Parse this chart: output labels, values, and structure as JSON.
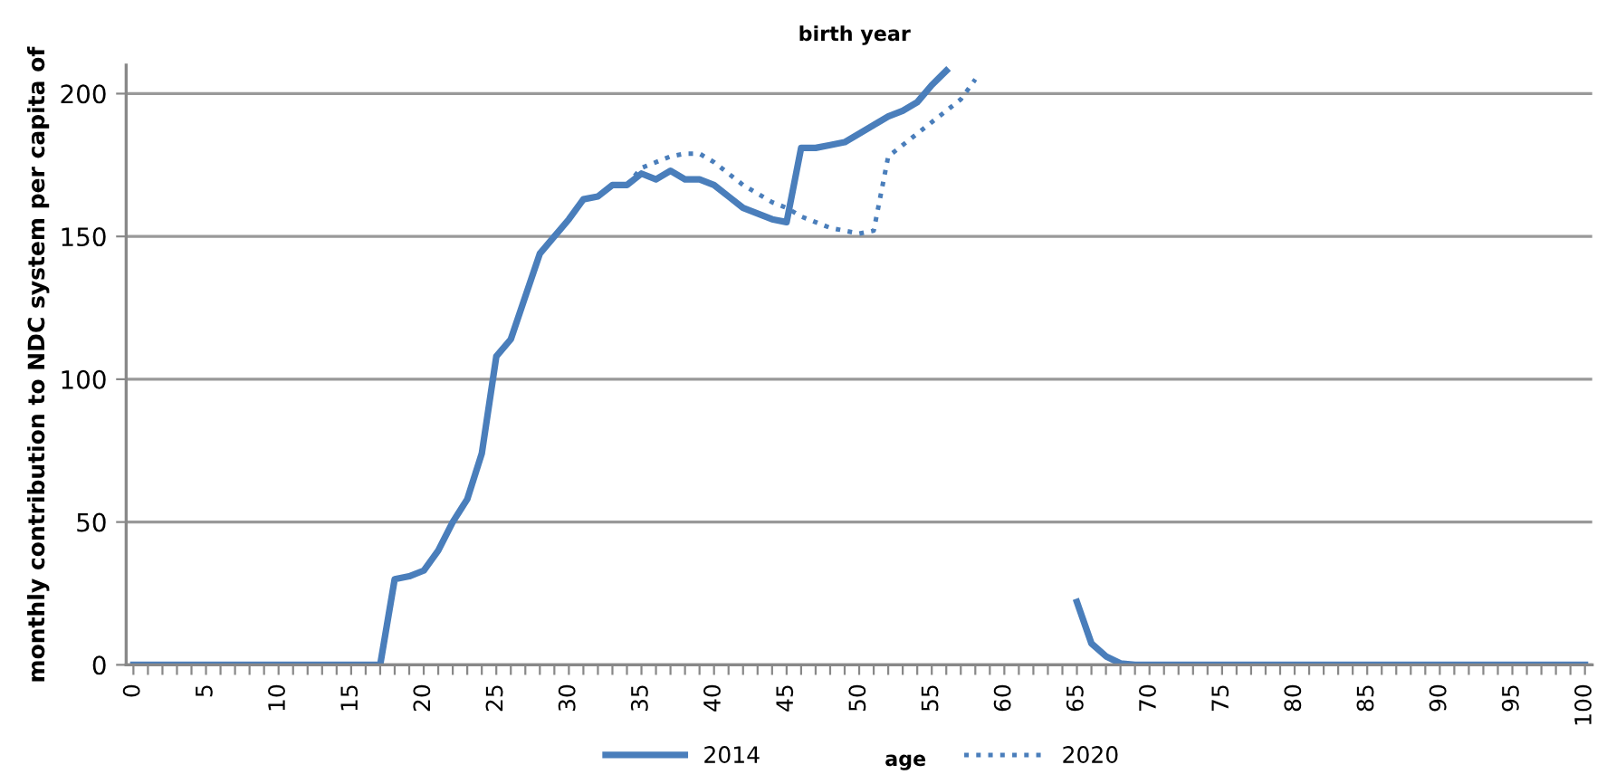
{
  "chart_data": {
    "type": "line",
    "title": "birth year",
    "xlabel": "age",
    "ylabel": "monthly contribution to NDC system per capita of",
    "xlim": [
      -0.5,
      100.5
    ],
    "ylim": [
      0,
      210
    ],
    "yticks": [
      0,
      50,
      100,
      150,
      200
    ],
    "xticks": [
      0,
      {
        "value": 1,
        "label": null
      },
      {
        "value": 2,
        "label": null
      },
      {
        "value": 3,
        "label": null
      },
      {
        "value": 4,
        "label": null
      },
      5,
      {
        "value": 6,
        "label": null
      },
      {
        "value": 7,
        "label": null
      },
      {
        "value": 8,
        "label": null
      },
      {
        "value": 9,
        "label": null
      },
      10,
      {
        "value": 11,
        "label": null
      },
      {
        "value": 12,
        "label": null
      },
      {
        "value": 13,
        "label": null
      },
      {
        "value": 14,
        "label": null
      },
      15,
      {
        "value": 16,
        "label": null
      },
      {
        "value": 17,
        "label": null
      },
      {
        "value": 18,
        "label": null
      },
      {
        "value": 19,
        "label": null
      },
      20,
      {
        "value": 21,
        "label": null
      },
      {
        "value": 22,
        "label": null
      },
      {
        "value": 23,
        "label": null
      },
      {
        "value": 24,
        "label": null
      },
      25,
      {
        "value": 26,
        "label": null
      },
      {
        "value": 27,
        "label": null
      },
      {
        "value": 28,
        "label": null
      },
      {
        "value": 29,
        "label": null
      },
      30,
      {
        "value": 31,
        "label": null
      },
      {
        "value": 32,
        "label": null
      },
      {
        "value": 33,
        "label": null
      },
      {
        "value": 34,
        "label": null
      },
      35,
      {
        "value": 36,
        "label": null
      },
      {
        "value": 37,
        "label": null
      },
      {
        "value": 38,
        "label": null
      },
      {
        "value": 39,
        "label": null
      },
      40,
      {
        "value": 41,
        "label": null
      },
      {
        "value": 42,
        "label": null
      },
      {
        "value": 43,
        "label": null
      },
      {
        "value": 44,
        "label": null
      },
      45,
      {
        "value": 46,
        "label": null
      },
      {
        "value": 47,
        "label": null
      },
      {
        "value": 48,
        "label": null
      },
      {
        "value": 49,
        "label": null
      },
      50,
      {
        "value": 51,
        "label": null
      },
      {
        "value": 52,
        "label": null
      },
      {
        "value": 53,
        "label": null
      },
      {
        "value": 54,
        "label": null
      },
      55,
      {
        "value": 56,
        "label": null
      },
      {
        "value": 57,
        "label": null
      },
      {
        "value": 58,
        "label": null
      },
      {
        "value": 59,
        "label": null
      },
      60,
      {
        "value": 61,
        "label": null
      },
      {
        "value": 62,
        "label": null
      },
      {
        "value": 63,
        "label": null
      },
      {
        "value": 64,
        "label": null
      },
      65,
      {
        "value": 66,
        "label": null
      },
      {
        "value": 67,
        "label": null
      },
      {
        "value": 68,
        "label": null
      },
      {
        "value": 69,
        "label": null
      },
      70,
      {
        "value": 71,
        "label": null
      },
      {
        "value": 72,
        "label": null
      },
      {
        "value": 73,
        "label": null
      },
      {
        "value": 74,
        "label": null
      },
      75,
      {
        "value": 76,
        "label": null
      },
      {
        "value": 77,
        "label": null
      },
      {
        "value": 78,
        "label": null
      },
      {
        "value": 79,
        "label": null
      },
      80,
      {
        "value": 81,
        "label": null
      },
      {
        "value": 82,
        "label": null
      },
      {
        "value": 83,
        "label": null
      },
      {
        "value": 84,
        "label": null
      },
      85,
      {
        "value": 86,
        "label": null
      },
      {
        "value": 87,
        "label": null
      },
      {
        "value": 88,
        "label": null
      },
      {
        "value": 89,
        "label": null
      },
      90,
      {
        "value": 91,
        "label": null
      },
      {
        "value": 92,
        "label": null
      },
      {
        "value": 93,
        "label": null
      },
      {
        "value": 94,
        "label": null
      },
      95,
      {
        "value": 96,
        "label": null
      },
      {
        "value": 97,
        "label": null
      },
      {
        "value": 98,
        "label": null
      },
      {
        "value": 99,
        "label": null
      },
      100
    ],
    "grid": "y",
    "legend": "bottom",
    "marker": "none",
    "series": [
      {
        "name": "2014",
        "color": "#4a7ebb",
        "line_style": "solid",
        "x": [
          0,
          1,
          2,
          3,
          4,
          5,
          6,
          7,
          8,
          9,
          10,
          11,
          12,
          13,
          14,
          15,
          16,
          17,
          18,
          19,
          20,
          21,
          22,
          23,
          24,
          25,
          26,
          27,
          28,
          29,
          30,
          31,
          32,
          33,
          34,
          35,
          36,
          37,
          38,
          39,
          40,
          41,
          42,
          43,
          44,
          45,
          46,
          47,
          48,
          49,
          50,
          51,
          52,
          53,
          54,
          55,
          56,
          60,
          65,
          66,
          67,
          68,
          69,
          70,
          71,
          72,
          73,
          74,
          75,
          76,
          77,
          78,
          79,
          80,
          81,
          82,
          83,
          84,
          85,
          86,
          87,
          88,
          89,
          90,
          91,
          92,
          93,
          94,
          95,
          96,
          97,
          98,
          99,
          100
        ],
        "values": [
          0,
          0,
          0,
          0,
          0,
          0,
          0,
          0,
          0,
          0,
          0,
          0,
          0,
          0,
          0,
          0,
          0,
          0,
          30,
          31,
          33,
          40,
          50,
          58,
          74,
          108,
          114,
          129,
          144,
          150,
          156,
          163,
          164,
          168,
          168,
          172,
          170,
          173,
          170,
          170,
          168,
          164,
          160,
          158,
          156,
          155,
          181,
          181,
          182,
          183,
          186,
          189,
          192,
          194,
          197,
          203,
          208,
          null,
          22,
          7.5,
          3,
          0.5,
          0,
          0,
          0,
          0,
          0,
          0,
          0,
          0,
          0,
          0,
          0,
          0,
          0,
          0,
          0,
          0,
          0,
          0,
          0,
          0,
          0,
          0,
          0,
          0,
          0,
          0,
          0,
          0,
          0,
          0,
          0,
          0
        ]
      },
      {
        "name": "2020",
        "color": "#4a7ebb",
        "line_style": "dotted",
        "x": [
          34,
          35,
          36,
          37,
          38,
          39,
          40,
          41,
          42,
          43,
          44,
          45,
          46,
          47,
          48,
          49,
          50,
          51,
          52,
          53,
          54,
          55,
          56,
          57,
          58
        ],
        "values": [
          168,
          174,
          176,
          178,
          179,
          179,
          176,
          172,
          168,
          165,
          162,
          160,
          157,
          155,
          153,
          152,
          151,
          152,
          178,
          182,
          186,
          190,
          194,
          198,
          205
        ]
      }
    ]
  }
}
